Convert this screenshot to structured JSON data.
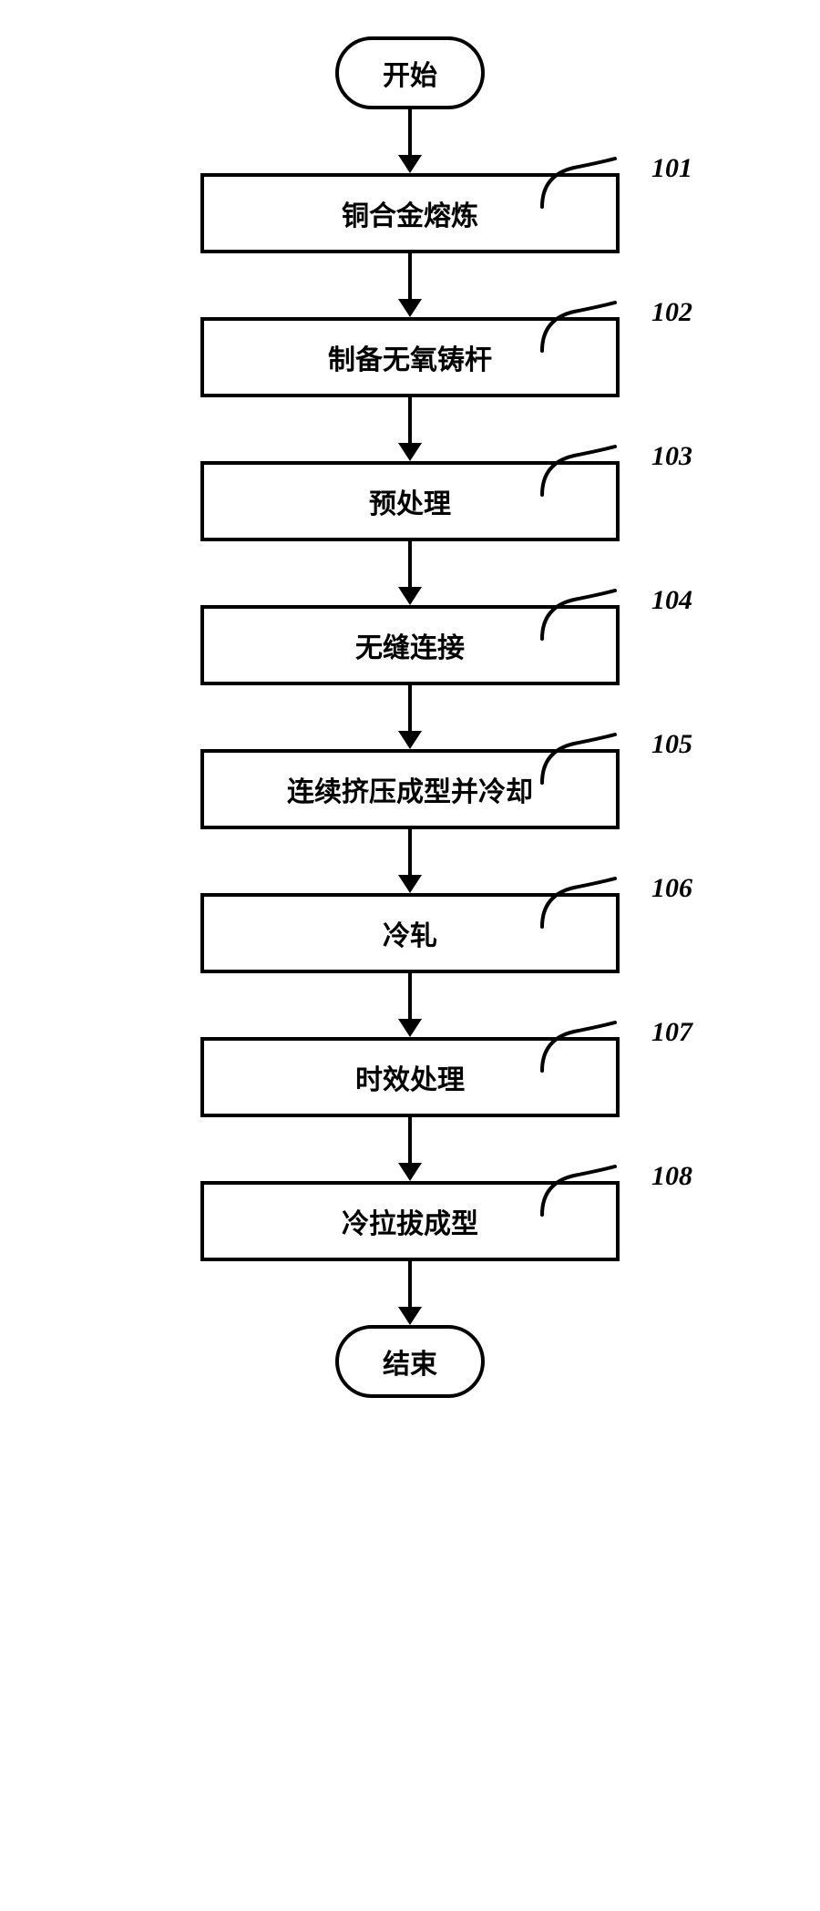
{
  "flowchart": {
    "type": "flowchart",
    "direction": "top-to-bottom",
    "background_color": "#ffffff",
    "border_color": "#000000",
    "border_width": 4,
    "text_color": "#000000",
    "font_family": "SimSun",
    "terminator_fontsize": 30,
    "process_fontsize": 30,
    "label_fontsize": 30,
    "process_box_width": 460,
    "terminator_radius": 50,
    "arrow_color": "#000000",
    "arrow_shaft_width": 4,
    "arrow_head_width": 26,
    "arrow_head_height": 20,
    "arrow_length": 70,
    "connector_curve": true,
    "start": {
      "text": "开始"
    },
    "end": {
      "text": "结束"
    },
    "steps": [
      {
        "label": "101",
        "text": "铜合金熔炼"
      },
      {
        "label": "102",
        "text": "制备无氧铸杆"
      },
      {
        "label": "103",
        "text": "预处理"
      },
      {
        "label": "104",
        "text": "无缝连接"
      },
      {
        "label": "105",
        "text": "连续挤压成型并冷却"
      },
      {
        "label": "106",
        "text": "冷轧"
      },
      {
        "label": "107",
        "text": "时效处理"
      },
      {
        "label": "108",
        "text": "冷拉拔成型"
      }
    ]
  }
}
